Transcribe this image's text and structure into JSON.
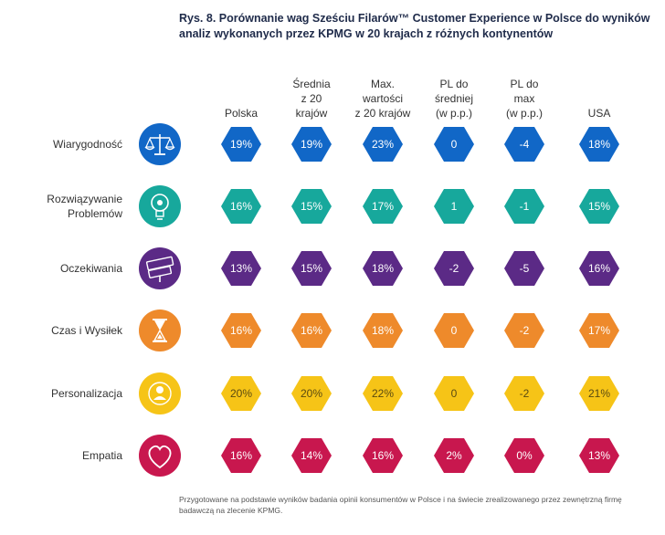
{
  "title": "Rys. 8. Porównanie wag Sześciu Filarów™ Customer Experience w Polsce do wyników analiz wykonanych przez KPMG w 20 krajach z różnych kontynentów",
  "footnote": "Przygotowane na podstawie wyników badania opinii konsumentów w Polsce i na świecie zrealizowanego przez zewnętrzną firmę badawczą na zlecenie KPMG.",
  "chart_data": {
    "type": "table",
    "columns": [
      "Polska",
      "Średnia\nz 20\nkrajów",
      "Max.\nwartości\nz 20 krajów",
      "PL do\nśredniej\n(w p.p.)",
      "PL do\nmax\n(w p.p.)",
      "USA"
    ],
    "rows": [
      {
        "label": "Wiarygodność",
        "color": "#1167c7",
        "icon": "scales-icon",
        "values": [
          "19%",
          "19%",
          "23%",
          "0",
          "-4",
          "18%"
        ]
      },
      {
        "label": "Rozwiązywanie\nProblemów",
        "color": "#17a89c",
        "icon": "lightbulb-icon",
        "values": [
          "16%",
          "15%",
          "17%",
          "1",
          "-1",
          "15%"
        ]
      },
      {
        "label": "Oczekiwania",
        "color": "#5b2a86",
        "icon": "expectation-sign-icon",
        "values": [
          "13%",
          "15%",
          "18%",
          "-2",
          "-5",
          "16%"
        ]
      },
      {
        "label": "Czas i Wysiłek",
        "color": "#ee8a2b",
        "icon": "hourglass-icon",
        "values": [
          "16%",
          "16%",
          "18%",
          "0",
          "-2",
          "17%"
        ]
      },
      {
        "label": "Personalizacja",
        "color": "#f6c417",
        "icon": "person-badge-icon",
        "values": [
          "20%",
          "20%",
          "22%",
          "0",
          "-2",
          "21%"
        ]
      },
      {
        "label": "Empatia",
        "color": "#c8174e",
        "icon": "heart-icon",
        "values": [
          "16%",
          "14%",
          "16%",
          "2%",
          "0%",
          "13%"
        ]
      }
    ]
  }
}
